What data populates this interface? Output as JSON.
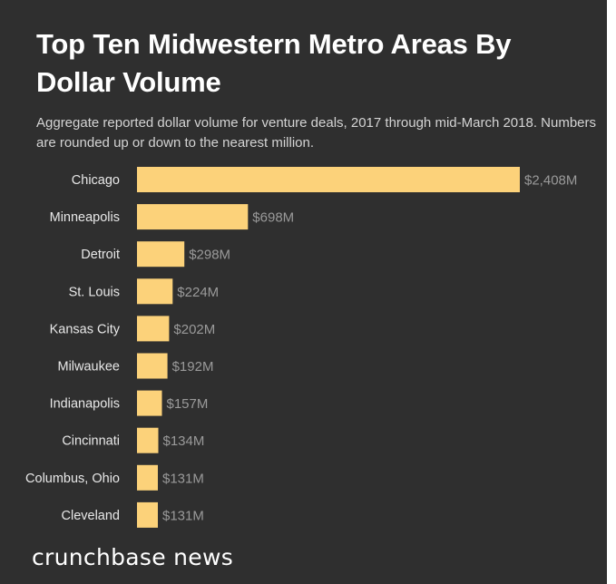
{
  "title": "Top Ten Midwestern Metro Areas By Dollar Volume",
  "subtitle": "Aggregate reported dollar volume for venture deals, 2017 through mid-March 2018. Numbers are rounded up or down to the nearest million.",
  "brand": "crunchbase news",
  "colors": {
    "background": "#2f2f2f",
    "bar": "#fcd27a",
    "title": "#ffffff",
    "subtitle": "#d4d4d4",
    "category_label": "#e8e8e8",
    "value_label": "#9a9a9a"
  },
  "chart_data": {
    "type": "bar",
    "orientation": "horizontal",
    "title": "Top Ten Midwestern Metro Areas By Dollar Volume",
    "categories": [
      "Chicago",
      "Minneapolis",
      "Detroit",
      "St. Louis",
      "Kansas City",
      "Milwaukee",
      "Indianapolis",
      "Cincinnati",
      "Columbus, Ohio",
      "Cleveland"
    ],
    "values": [
      2408,
      698,
      298,
      224,
      202,
      192,
      157,
      134,
      131,
      131
    ],
    "value_labels": [
      "$2,408M",
      "$698M",
      "$298M",
      "$224M",
      "$202M",
      "$192M",
      "$157M",
      "$134M",
      "$131M",
      "$131M"
    ],
    "unit": "M",
    "xlim": [
      0,
      2408
    ],
    "grid": false,
    "legend": "none"
  }
}
